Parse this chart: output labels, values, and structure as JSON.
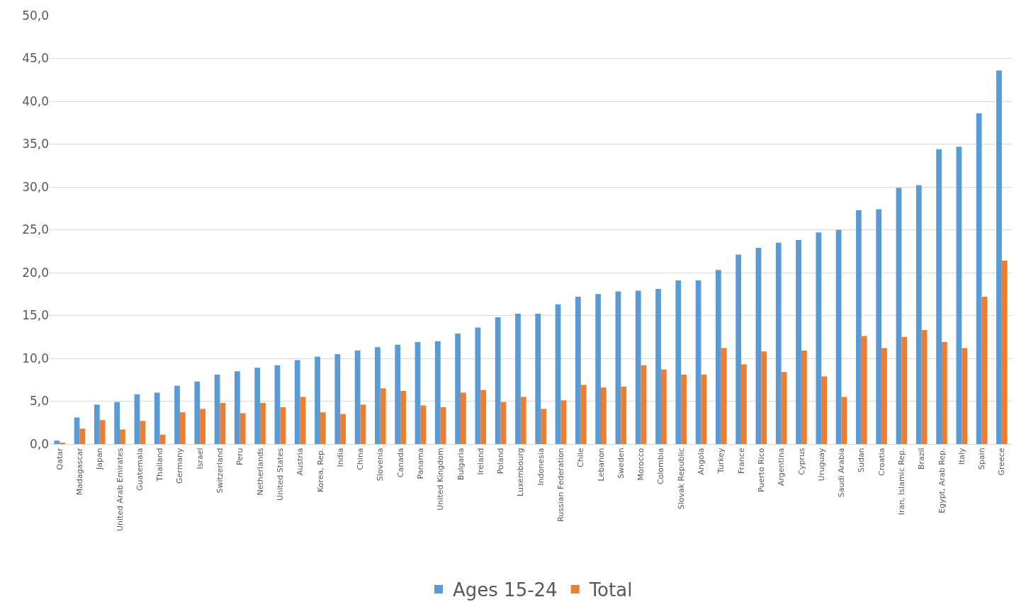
{
  "chart_data": {
    "type": "bar",
    "categories": [
      "Qatar",
      "Madagascar",
      "Japan",
      "United Arab Emirates",
      "Guatemala",
      "Thailand",
      "Germany",
      "Israel",
      "Switzerland",
      "Peru",
      "Netherlands",
      "United States",
      "Austria",
      "Korea, Rep.",
      "India",
      "China",
      "Slovenia",
      "Canada",
      "Panama",
      "United Kingdom",
      "Bulgaria",
      "Ireland",
      "Poland",
      "Luxembourg",
      "Indonesia",
      "Russian Federation",
      "Chile",
      "Lebanon",
      "Sweden",
      "Morocco",
      "Colombia",
      "Slovak Republic",
      "Angola",
      "Turkey",
      "France",
      "Puerto Rico",
      "Argentina",
      "Cyprus",
      "Uruguay",
      "Saudi Arabia",
      "Sudan",
      "Croatia",
      "Iran, Islamic Rep.",
      "Brazil",
      "Egypt, Arab Rep.",
      "Italy",
      "Spain",
      "Greece"
    ],
    "series": [
      {
        "name": "Ages 15-24",
        "color": "#5b9bd5",
        "values": [
          0.4,
          3.1,
          4.6,
          4.9,
          5.8,
          6.0,
          6.8,
          7.3,
          8.1,
          8.5,
          8.9,
          9.2,
          9.8,
          10.2,
          10.5,
          10.9,
          11.3,
          11.6,
          11.9,
          12.0,
          12.9,
          13.6,
          14.8,
          15.2,
          15.2,
          16.3,
          17.2,
          17.5,
          17.8,
          17.9,
          18.1,
          19.1,
          19.1,
          20.3,
          22.1,
          22.9,
          23.5,
          23.8,
          24.7,
          25.0,
          27.3,
          27.4,
          29.9,
          30.2,
          34.4,
          34.7,
          38.6,
          43.6
        ]
      },
      {
        "name": "Total",
        "color": "#ed7d31",
        "values": [
          0.1,
          1.8,
          2.8,
          1.7,
          2.7,
          1.1,
          3.7,
          4.1,
          4.8,
          3.6,
          4.8,
          4.3,
          5.5,
          3.7,
          3.5,
          4.6,
          6.5,
          6.2,
          4.5,
          4.3,
          6.0,
          6.3,
          4.9,
          5.5,
          4.1,
          5.1,
          6.9,
          6.6,
          6.7,
          9.2,
          8.7,
          8.1,
          8.1,
          11.2,
          9.3,
          10.8,
          8.4,
          10.9,
          7.9,
          5.5,
          12.6,
          11.2,
          12.5,
          13.3,
          11.9,
          11.2,
          17.2,
          21.4
        ]
      }
    ],
    "ylim": [
      0,
      50
    ],
    "yticks": [
      {
        "value": 0,
        "label": "0,0"
      },
      {
        "value": 5,
        "label": "5,0"
      },
      {
        "value": 10,
        "label": "10,0"
      },
      {
        "value": 15,
        "label": "15,0"
      },
      {
        "value": 20,
        "label": "20,0"
      },
      {
        "value": 25,
        "label": "25,0"
      },
      {
        "value": 30,
        "label": "30,0"
      },
      {
        "value": 35,
        "label": "35,0"
      },
      {
        "value": 40,
        "label": "40,0"
      },
      {
        "value": 45,
        "label": "45,0"
      },
      {
        "value": 50,
        "label": "50,0"
      }
    ],
    "grid": "y",
    "legend": "bottom"
  }
}
